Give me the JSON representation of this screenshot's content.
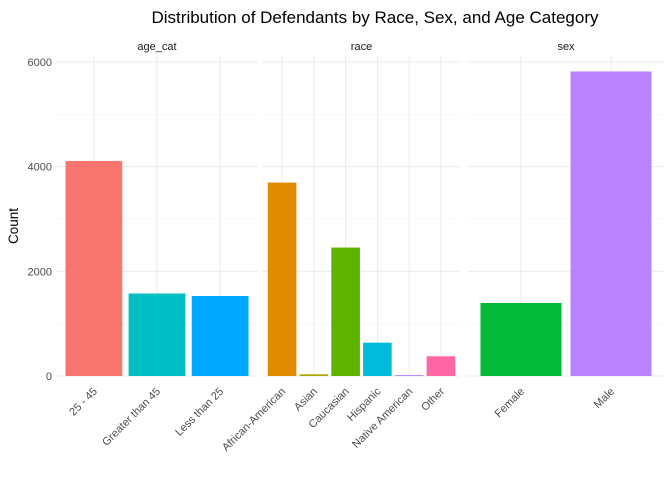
{
  "chart_data": {
    "type": "bar",
    "title": "Distribution of Defendants by Race, Sex, and Age Category",
    "xlabel": "",
    "ylabel": "Count",
    "ylim": [
      0,
      6000
    ],
    "yticks": [
      "0",
      "2000",
      "4000",
      "6000"
    ],
    "grid": true,
    "facets": [
      {
        "name": "age_cat",
        "categories": [
          "25 - 45",
          "Greater than 45",
          "Less than 25"
        ],
        "values": [
          4109,
          1576,
          1529
        ],
        "colors": [
          "#F8766D",
          "#00BFC4",
          "#00A9FF"
        ]
      },
      {
        "name": "race",
        "categories": [
          "African-American",
          "Asian",
          "Caucasian",
          "Hispanic",
          "Native American",
          "Other"
        ],
        "values": [
          3696,
          32,
          2454,
          637,
          18,
          377
        ],
        "colors": [
          "#E08B00",
          "#ABA300",
          "#5EB300",
          "#00BBDA",
          "#B983FF",
          "#FF67A4"
        ]
      },
      {
        "name": "sex",
        "categories": [
          "Female",
          "Male"
        ],
        "values": [
          1395,
          5819
        ],
        "colors": [
          "#00BA38",
          "#B983FF"
        ]
      }
    ]
  }
}
